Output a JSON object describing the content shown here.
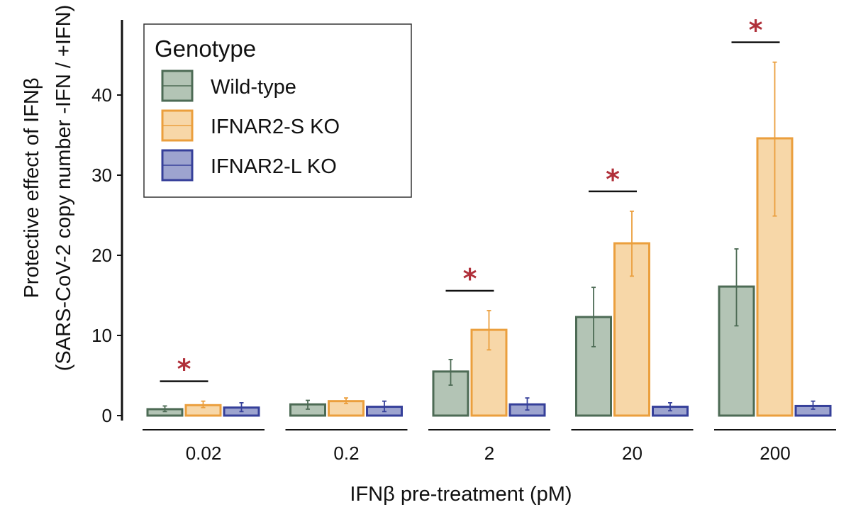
{
  "colors": {
    "axis": "#111111",
    "significance": "#b0303a"
  },
  "chart_data": {
    "type": "bar",
    "xlabel": "IFNβ pre-treatment (pM)",
    "ylabel_line1": "Protective effect of IFNβ",
    "ylabel_line2": "(SARS-CoV-2 copy number -IFN / +IFN)",
    "ylim": [
      0,
      48
    ],
    "yticks": [
      "0",
      "10",
      "20",
      "30",
      "40"
    ],
    "categories": [
      "0.02",
      "0.2",
      "2",
      "20",
      "200"
    ],
    "legend_title": "Genotype",
    "legend_position": "top-left",
    "series": [
      {
        "name": "Wild-type",
        "fill": "#b3c4b5",
        "stroke": "#4d6b55",
        "values": [
          0.8,
          1.4,
          5.5,
          12.3,
          16.1
        ],
        "err_low": [
          0.5,
          0.8,
          3.8,
          8.6,
          11.2
        ],
        "err_high": [
          1.2,
          1.9,
          7.0,
          16.0,
          20.8
        ]
      },
      {
        "name": "IFNAR2-S KO",
        "fill": "#f7d7a8",
        "stroke": "#eb9f3d",
        "values": [
          1.3,
          1.8,
          10.7,
          21.5,
          34.6
        ],
        "err_low": [
          1.0,
          1.5,
          8.2,
          17.4,
          24.9
        ],
        "err_high": [
          1.8,
          2.2,
          13.1,
          25.5,
          44.1
        ]
      },
      {
        "name": "IFNAR2-L KO",
        "fill": "#9da4cf",
        "stroke": "#36409a",
        "values": [
          1.0,
          1.1,
          1.4,
          1.1,
          1.2
        ],
        "err_low": [
          0.5,
          0.5,
          0.7,
          0.6,
          0.8
        ],
        "err_high": [
          1.6,
          1.8,
          2.2,
          1.6,
          1.8
        ]
      }
    ],
    "significance": [
      {
        "category": "0.02",
        "marker": "*"
      },
      {
        "category": "2",
        "marker": "*"
      },
      {
        "category": "20",
        "marker": "*"
      },
      {
        "category": "200",
        "marker": "*"
      }
    ]
  }
}
